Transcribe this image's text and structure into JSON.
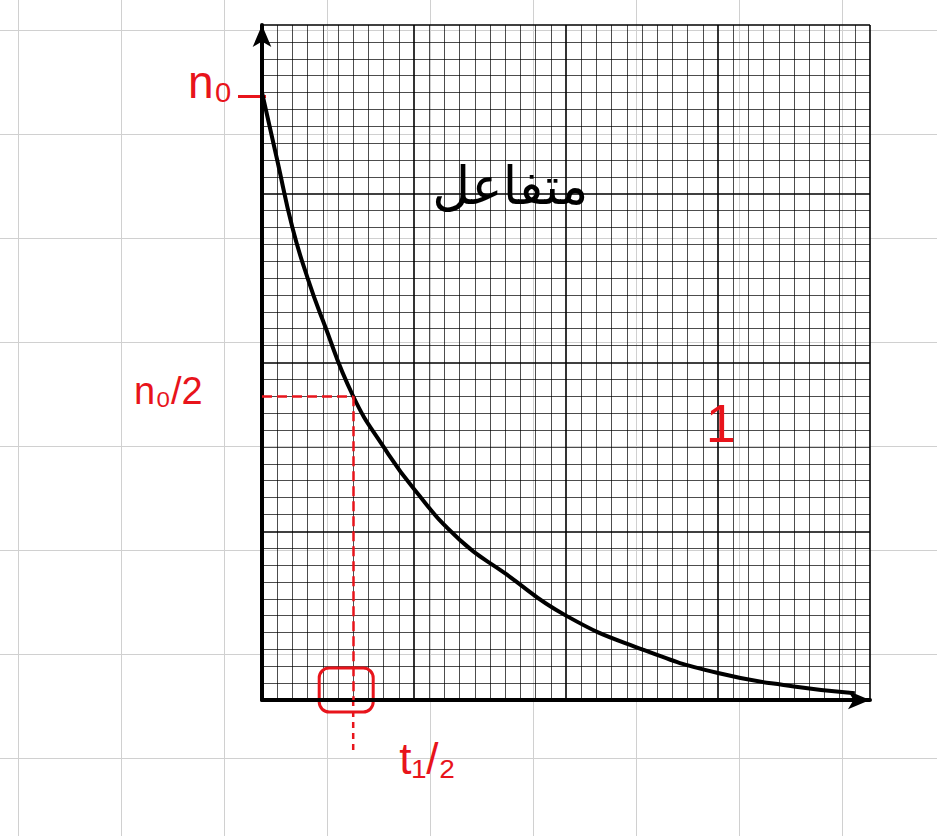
{
  "chart_data": {
    "type": "line",
    "x": [
      0,
      1,
      2,
      3,
      4,
      6,
      8,
      10,
      13,
      16,
      20,
      25,
      30,
      35,
      39
    ],
    "values": [
      36,
      32,
      28,
      25,
      22.5,
      18,
      15,
      12.5,
      9.5,
      7.5,
      5,
      3,
      1.6,
      0.8,
      0.4
    ],
    "color": "#000000",
    "xlim": [
      0,
      40
    ],
    "xticks": [
      0,
      10,
      20,
      30,
      40
    ],
    "ylim": [
      0,
      40
    ],
    "yticks": [
      0,
      10,
      20,
      30,
      40
    ],
    "grid": true,
    "tick_labels": false,
    "annotations": {
      "n0": {
        "label": "n₀",
        "value": 36
      },
      "half": {
        "label": "n₀/2",
        "value": 18
      },
      "t_half": {
        "label": "t₁/₂",
        "value": 6
      },
      "notes": [
        "متفاعل",
        "1"
      ]
    }
  }
}
